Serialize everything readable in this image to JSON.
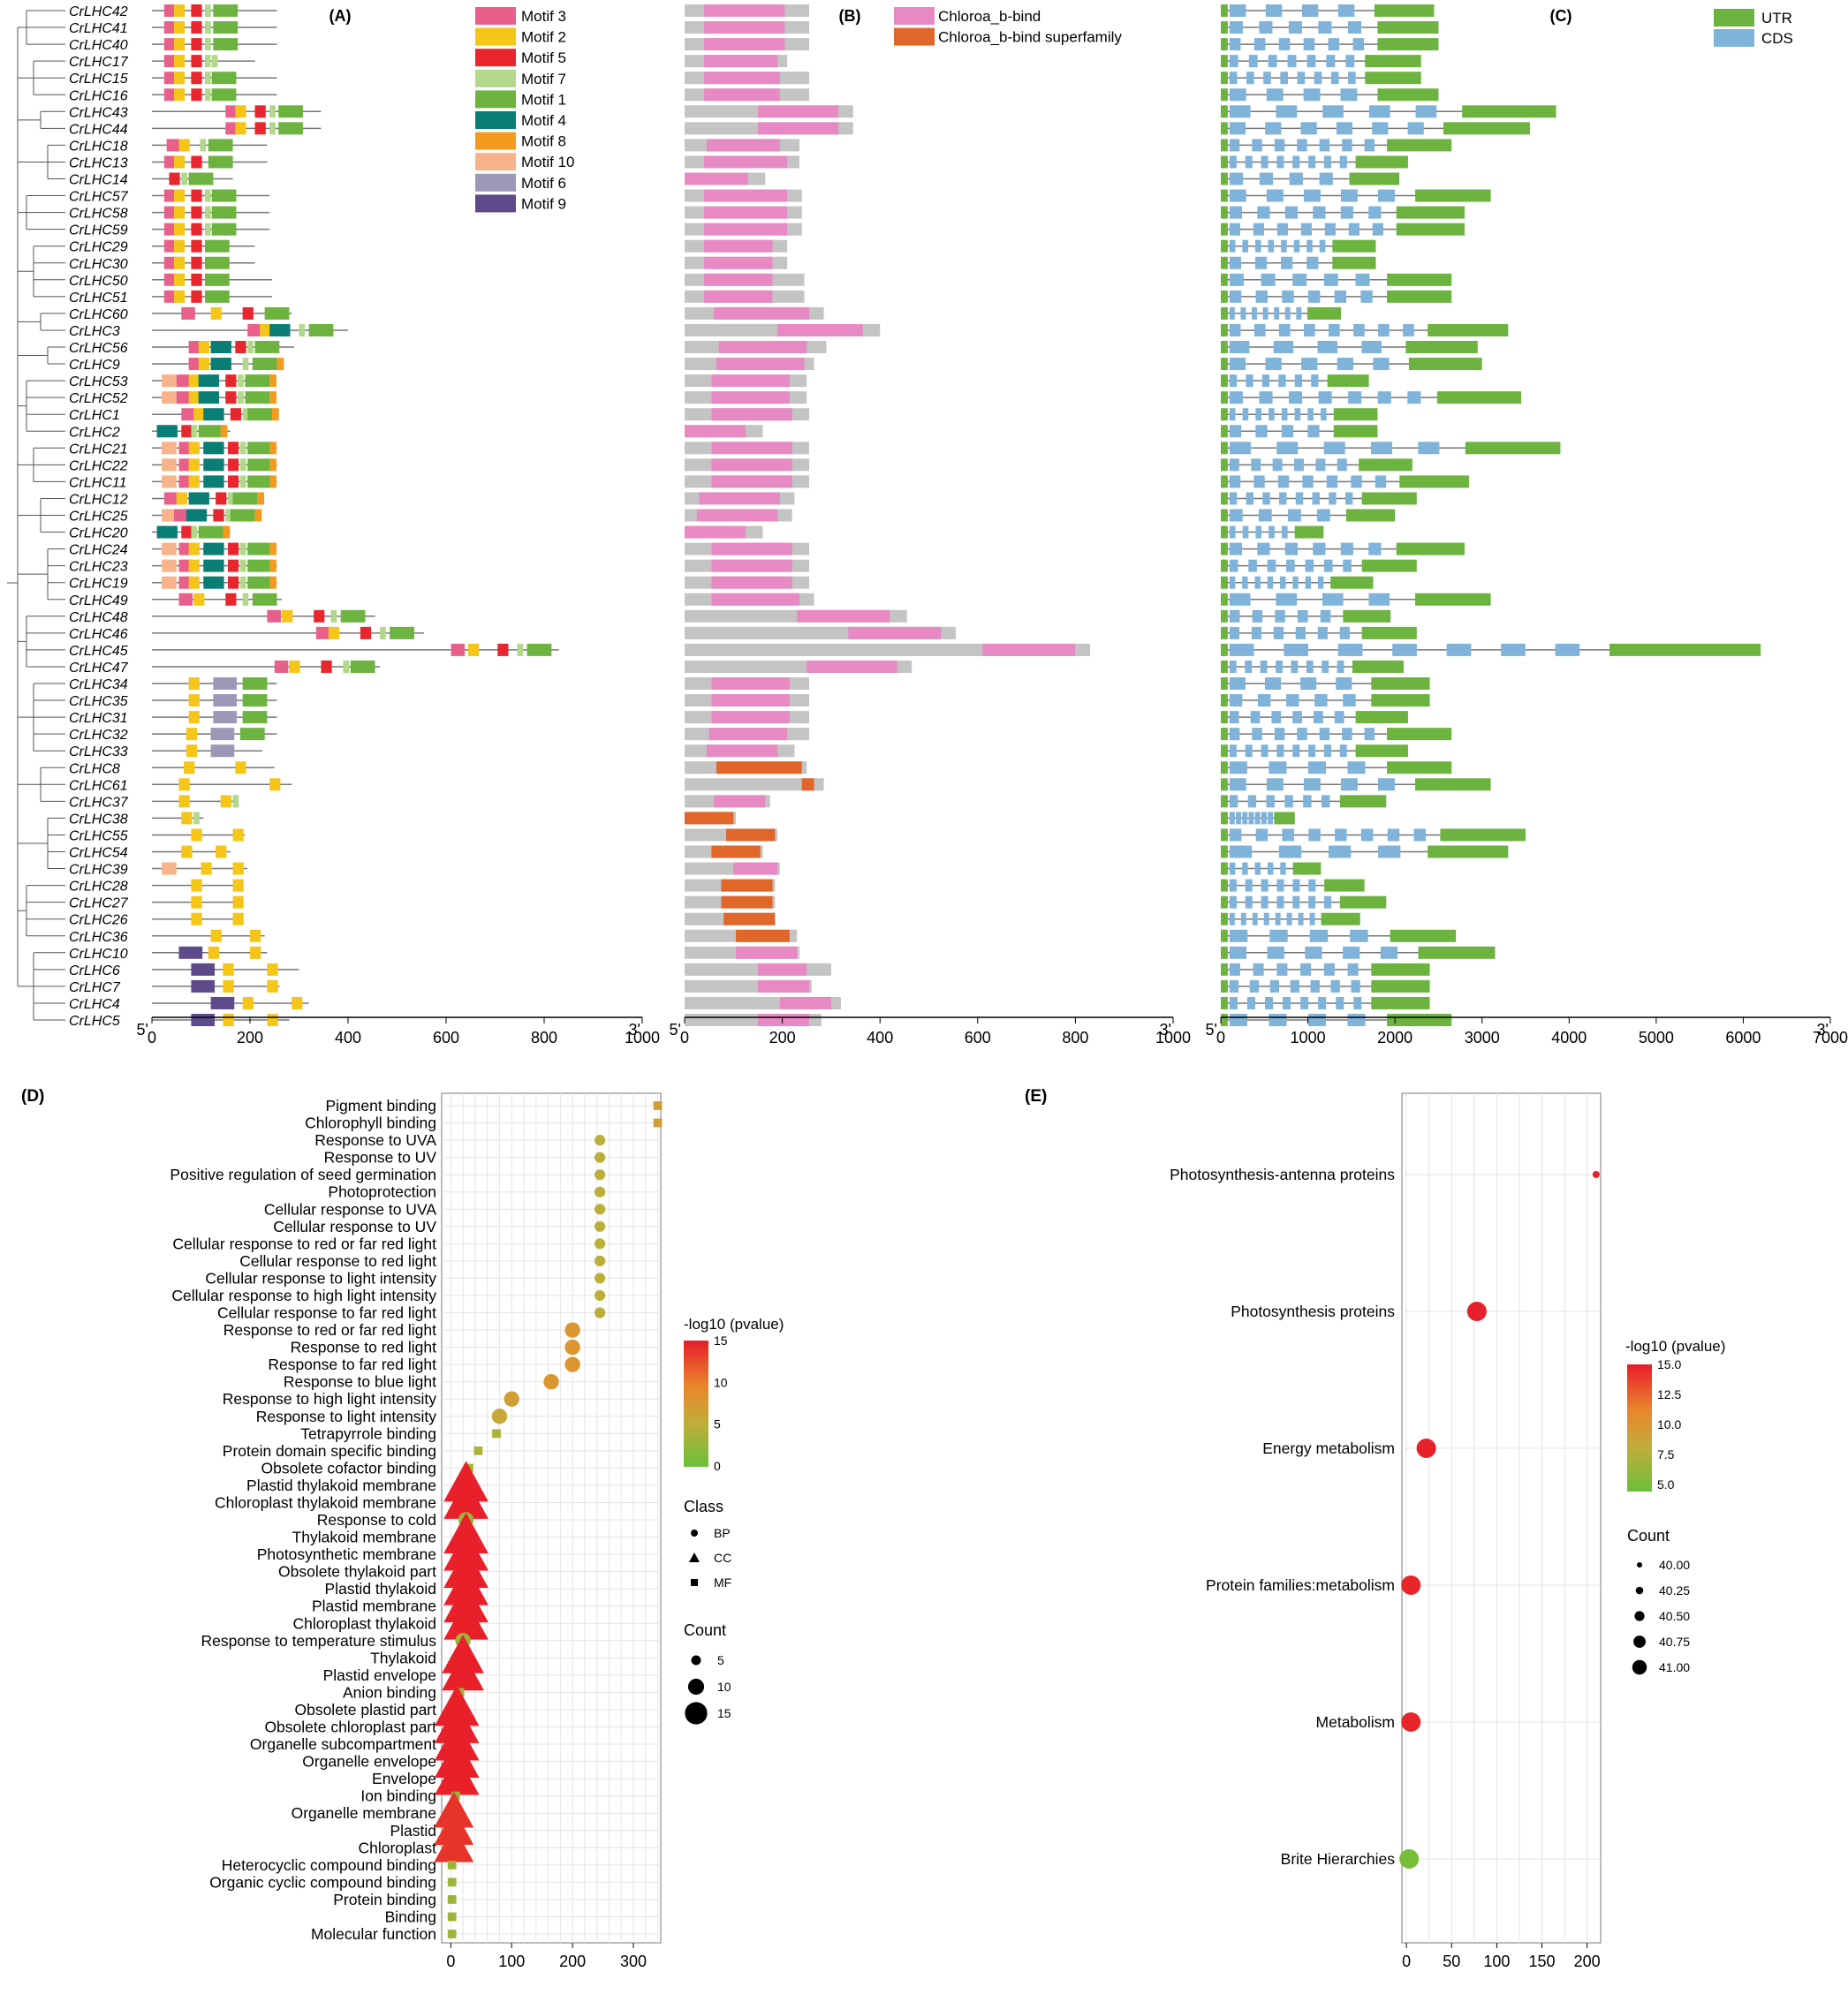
{
  "panels": {
    "A": {
      "label": "(A)"
    },
    "B": {
      "label": "(B)"
    },
    "C": {
      "label": "(C)"
    },
    "D": {
      "label": "(D)"
    },
    "E": {
      "label": "(E)"
    }
  },
  "genes": [
    "CrLHC42",
    "CrLHC41",
    "CrLHC40",
    "CrLHC17",
    "CrLHC15",
    "CrLHC16",
    "CrLHC43",
    "CrLHC44",
    "CrLHC18",
    "CrLHC13",
    "CrLHC14",
    "CrLHC57",
    "CrLHC58",
    "CrLHC59",
    "CrLHC29",
    "CrLHC30",
    "CrLHC50",
    "CrLHC51",
    "CrLHC60",
    "CrLHC3",
    "CrLHC56",
    "CrLHC9",
    "CrLHC53",
    "CrLHC52",
    "CrLHC1",
    "CrLHC2",
    "CrLHC21",
    "CrLHC22",
    "CrLHC11",
    "CrLHC12",
    "CrLHC25",
    "CrLHC20",
    "CrLHC24",
    "CrLHC23",
    "CrLHC19",
    "CrLHC49",
    "CrLHC48",
    "CrLHC46",
    "CrLHC45",
    "CrLHC47",
    "CrLHC34",
    "CrLHC35",
    "CrLHC31",
    "CrLHC32",
    "CrLHC33",
    "CrLHC8",
    "CrLHC61",
    "CrLHC37",
    "CrLHC38",
    "CrLHC55",
    "CrLHC54",
    "CrLHC39",
    "CrLHC28",
    "CrLHC27",
    "CrLHC26",
    "CrLHC36",
    "CrLHC10",
    "CrLHC6",
    "CrLHC7",
    "CrLHC4",
    "CrLHC5"
  ],
  "protein_lengths": [
    255,
    255,
    255,
    210,
    255,
    255,
    345,
    345,
    235,
    235,
    165,
    240,
    240,
    240,
    210,
    210,
    245,
    245,
    285,
    400,
    290,
    265,
    250,
    250,
    255,
    160,
    255,
    255,
    255,
    225,
    220,
    160,
    255,
    255,
    255,
    265,
    455,
    555,
    830,
    465,
    255,
    255,
    255,
    255,
    225,
    250,
    285,
    175,
    105,
    190,
    160,
    195,
    185,
    185,
    185,
    230,
    235,
    300,
    260,
    320,
    280
  ],
  "gene_lengths": [
    2450,
    2500,
    2500,
    2300,
    2300,
    2500,
    3850,
    3550,
    2650,
    2150,
    2050,
    3100,
    2800,
    2800,
    1780,
    1780,
    2650,
    2650,
    1380,
    3300,
    2950,
    3000,
    1700,
    3450,
    1800,
    1800,
    3900,
    2200,
    2850,
    2250,
    2000,
    1180,
    2800,
    2250,
    1750,
    3100,
    1950,
    2250,
    6200,
    2100,
    2400,
    2400,
    2150,
    2650,
    2150,
    2650,
    3100,
    1900,
    850,
    3500,
    3300,
    1150,
    1650,
    1900,
    1600,
    2700,
    3150,
    2400,
    2400,
    2400,
    2650
  ],
  "motif_legend": [
    {
      "name": "Motif 3",
      "color": "#e8608a"
    },
    {
      "name": "Motif 2",
      "color": "#f5c518"
    },
    {
      "name": "Motif 5",
      "color": "#e8262e"
    },
    {
      "name": "Motif 7",
      "color": "#b2d88a"
    },
    {
      "name": "Motif 1",
      "color": "#6db33f"
    },
    {
      "name": "Motif 4",
      "color": "#0a7d74"
    },
    {
      "name": "Motif 8",
      "color": "#f39b1e"
    },
    {
      "name": "Motif 10",
      "color": "#f7b48a"
    },
    {
      "name": "Motif 6",
      "color": "#9b98b8"
    },
    {
      "name": "Motif 9",
      "color": "#5c4a8a"
    }
  ],
  "domain_legend": [
    {
      "name": "Chloroa_b-bind",
      "color": "#e78ac3"
    },
    {
      "name": "Chloroa_b-bind superfamily",
      "color": "#e0662a"
    }
  ],
  "structure_legend": [
    {
      "name": "UTR",
      "color": "#6db33f"
    },
    {
      "name": "CDS",
      "color": "#7fb3d9"
    }
  ],
  "axis_labels": {
    "five_prime": "5'",
    "three_prime": "3'"
  },
  "chart_data": [
    {
      "type": "table",
      "panel": "A",
      "title": "",
      "xlabel": "",
      "xlim": [
        0,
        1000
      ],
      "ticks": [
        0,
        200,
        400,
        600,
        800,
        1000
      ],
      "note_values": "protein lengths per gene (aa), order follows genes[]"
    },
    {
      "type": "bar",
      "panel": "B",
      "xlim": [
        0,
        1000
      ],
      "ticks": [
        0,
        200,
        400,
        600,
        800,
        1000
      ],
      "series": [
        {
          "name": "Chloroa_b-bind",
          "values": [
            [
              40,
              205
            ],
            [
              40,
              205
            ],
            [
              40,
              205
            ],
            [
              40,
              190
            ],
            [
              40,
              195
            ],
            [
              40,
              195
            ],
            [
              150,
              315
            ],
            [
              150,
              315
            ],
            [
              45,
              195
            ],
            [
              40,
              210
            ],
            [
              0,
              130
            ],
            [
              40,
              210
            ],
            [
              40,
              210
            ],
            [
              40,
              210
            ],
            [
              40,
              180
            ],
            [
              40,
              180
            ],
            [
              40,
              180
            ],
            [
              40,
              180
            ],
            [
              60,
              255
            ],
            [
              190,
              365
            ],
            [
              70,
              250
            ],
            [
              65,
              245
            ],
            [
              55,
              215
            ],
            [
              55,
              215
            ],
            [
              55,
              220
            ],
            [
              0,
              125
            ],
            [
              55,
              220
            ],
            [
              55,
              220
            ],
            [
              55,
              220
            ],
            [
              30,
              195
            ],
            [
              25,
              190
            ],
            [
              0,
              125
            ],
            [
              55,
              220
            ],
            [
              55,
              220
            ],
            [
              55,
              220
            ],
            [
              55,
              235
            ],
            [
              230,
              420
            ],
            [
              335,
              525
            ],
            [
              610,
              800
            ],
            [
              250,
              435
            ],
            [
              55,
              215
            ],
            [
              55,
              215
            ],
            [
              55,
              215
            ],
            [
              50,
              210
            ],
            [
              45,
              190
            ],
            null,
            null,
            [
              60,
              165
            ],
            null,
            null,
            null,
            [
              100,
              190
            ],
            null,
            null,
            null,
            null,
            [
              105,
              230
            ],
            [
              150,
              250
            ],
            [
              150,
              255
            ],
            [
              195,
              300
            ],
            [
              150,
              255
            ]
          ]
        },
        {
          "name": "Chloroa_b-bind superfamily",
          "values": [
            null,
            null,
            null,
            null,
            null,
            null,
            null,
            null,
            null,
            null,
            null,
            null,
            null,
            null,
            null,
            null,
            null,
            null,
            null,
            null,
            null,
            null,
            null,
            null,
            null,
            null,
            null,
            null,
            null,
            null,
            null,
            null,
            null,
            null,
            null,
            null,
            null,
            null,
            null,
            null,
            null,
            null,
            null,
            null,
            null,
            [
              65,
              240
            ],
            [
              240,
              265
            ],
            null,
            [
              0,
              100
            ],
            [
              85,
              185
            ],
            [
              55,
              155
            ],
            null,
            [
              75,
              180
            ],
            [
              75,
              180
            ],
            [
              80,
              185
            ],
            [
              105,
              215
            ],
            null,
            null,
            null,
            null,
            null
          ]
        }
      ]
    },
    {
      "type": "bar",
      "panel": "C",
      "xlim": [
        0,
        7000
      ],
      "ticks": [
        0,
        1000,
        2000,
        3000,
        4000,
        5000,
        6000,
        7000
      ]
    },
    {
      "type": "scatter",
      "panel": "D",
      "xlim": [
        -15,
        345
      ],
      "xticks": [
        0,
        100,
        200,
        300
      ],
      "categories": [
        "Pigment binding",
        "Chlorophyll binding",
        "Response to UVA",
        "Response to UV",
        "Positive regulation of seed germination",
        "Photoprotection",
        "Cellular response to UVA",
        "Cellular response to UV",
        "Cellular response to red or far red light",
        "Cellular response to red light",
        "Cellular response to light intensity",
        "Cellular response to high light intensity",
        "Cellular response to far red light",
        "Response to red or far red light",
        "Response to red light",
        "Response to far red light",
        "Response to blue light",
        "Response to high light intensity",
        "Response to light intensity",
        "Tetrapyrrole binding",
        "Protein domain specific binding",
        "Obsolete cofactor binding",
        "Plastid thylakoid membrane",
        "Chloroplast thylakoid membrane",
        "Response to cold",
        "Thylakoid membrane",
        "Photosynthetic membrane",
        "Obsolete thylakoid part",
        "Plastid thylakoid",
        "Plastid membrane",
        "Chloroplast thylakoid",
        "Response to temperature stimulus",
        "Thylakoid",
        "Plastid envelope",
        "Anion binding",
        "Obsolete plastid part",
        "Obsolete chloroplast part",
        "Organelle subcompartment",
        "Organelle envelope",
        "Envelope",
        "Ion binding",
        "Organelle membrane",
        "Plastid",
        "Chloroplast",
        "Heterocyclic compound binding",
        "Organic cyclic compound binding",
        "Protein binding",
        "Binding",
        "Molecular function"
      ],
      "x": [
        340,
        340,
        245,
        245,
        245,
        245,
        245,
        245,
        245,
        245,
        245,
        245,
        245,
        200,
        200,
        200,
        165,
        100,
        80,
        75,
        45,
        30,
        25,
        25,
        25,
        25,
        25,
        25,
        25,
        25,
        25,
        20,
        20,
        20,
        15,
        10,
        10,
        10,
        10,
        10,
        8,
        5,
        5,
        5,
        2,
        2,
        2,
        2,
        2
      ],
      "class": [
        "MF",
        "MF",
        "BP",
        "BP",
        "BP",
        "BP",
        "BP",
        "BP",
        "BP",
        "BP",
        "BP",
        "BP",
        "BP",
        "BP",
        "BP",
        "BP",
        "BP",
        "BP",
        "BP",
        "MF",
        "MF",
        "MF",
        "CC",
        "CC",
        "BP",
        "CC",
        "CC",
        "CC",
        "CC",
        "CC",
        "CC",
        "BP",
        "CC",
        "CC",
        "MF",
        "CC",
        "CC",
        "CC",
        "CC",
        "CC",
        "MF",
        "CC",
        "CC",
        "CC",
        "MF",
        "MF",
        "MF",
        "MF",
        "MF"
      ],
      "count": [
        2,
        2,
        2,
        2,
        2,
        2,
        2,
        2,
        2,
        2,
        2,
        2,
        2,
        4,
        4,
        4,
        4,
        4,
        4,
        2,
        2,
        2,
        15,
        15,
        4,
        15,
        15,
        15,
        15,
        15,
        15,
        4,
        14,
        14,
        2,
        15,
        15,
        15,
        15,
        15,
        2,
        13,
        13,
        13,
        2,
        2,
        2,
        2,
        2
      ],
      "pvalue_log10": [
        7,
        7,
        5,
        5,
        5,
        5,
        5,
        5,
        5,
        5,
        5,
        5,
        5,
        8,
        8,
        8,
        8,
        7,
        6,
        4,
        4,
        4,
        15,
        15,
        3,
        15,
        15,
        15,
        15,
        15,
        15,
        3,
        15,
        15,
        3,
        15,
        15,
        15,
        15,
        15,
        3,
        14,
        14,
        14,
        3,
        3,
        3,
        3,
        3
      ],
      "colorbar": {
        "title": "-log10 (pvalue)",
        "ticks": [
          0,
          5,
          10,
          15
        ],
        "min": 0,
        "max": 15
      },
      "class_legend": {
        "title": "Class",
        "items": [
          "BP",
          "CC",
          "MF"
        ]
      },
      "count_legend": {
        "title": "Count",
        "items": [
          5,
          10,
          15
        ]
      }
    },
    {
      "type": "scatter",
      "panel": "E",
      "xlim": [
        -5,
        215
      ],
      "xticks": [
        0,
        50,
        100,
        150,
        200
      ],
      "categories": [
        "Photosynthesis-antenna proteins",
        "Photosynthesis proteins",
        "Energy metabolism",
        "Protein families:metabolism",
        "Metabolism",
        "Brite Hierarchies"
      ],
      "x": [
        210,
        78,
        22,
        5,
        5,
        3
      ],
      "count": [
        40.0,
        41.0,
        41.0,
        41.0,
        41.0,
        41.0
      ],
      "pvalue_log10": [
        15,
        15,
        15,
        14.8,
        14.8,
        5
      ],
      "colorbar": {
        "title": "-log10 (pvalue)",
        "ticks": [
          5.0,
          7.5,
          10.0,
          12.5,
          15.0
        ],
        "min": 4.5,
        "max": 15
      },
      "count_legend": {
        "title": "Count",
        "items": [
          40.0,
          40.25,
          40.5,
          40.75,
          41.0
        ]
      }
    }
  ]
}
